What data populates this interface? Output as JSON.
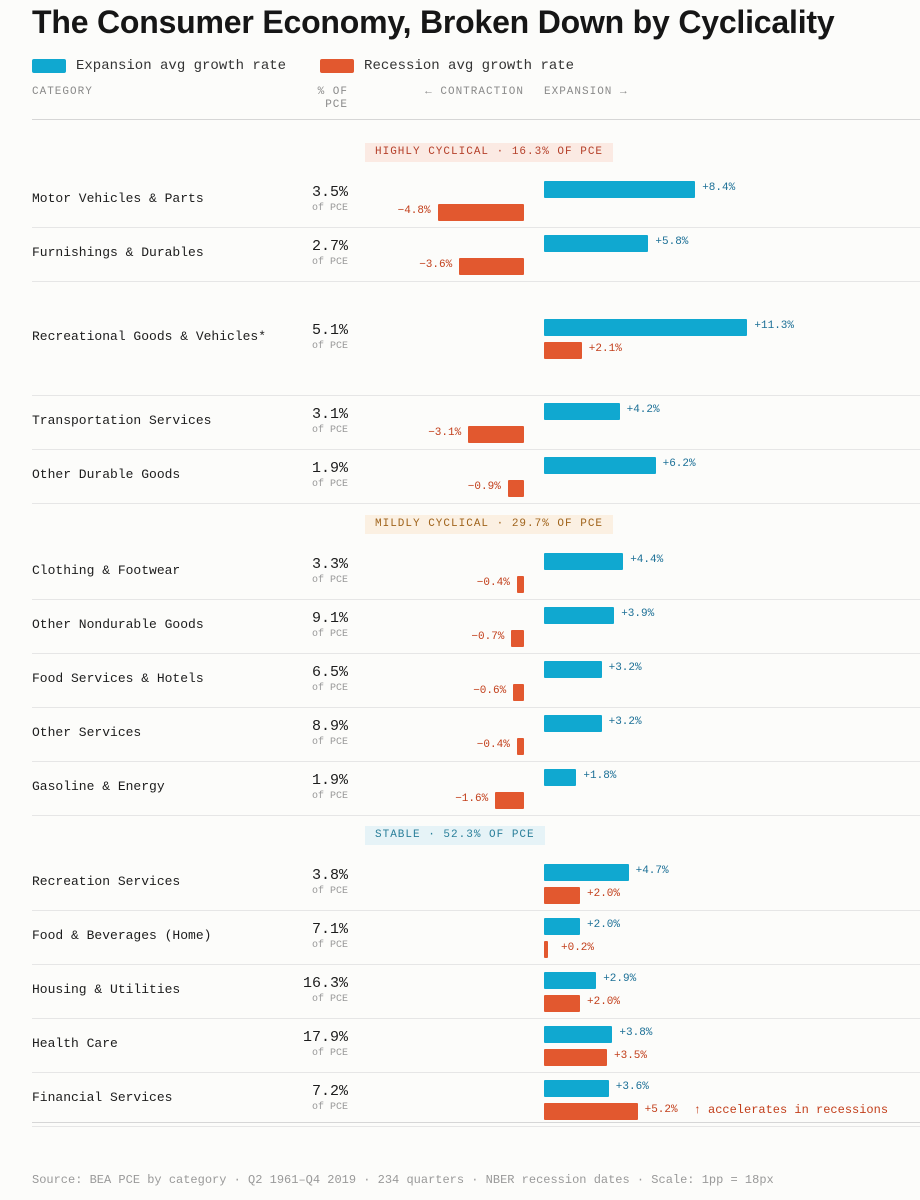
{
  "chart_data": {
    "type": "bar",
    "title": "The Consumer Economy, Broken Down by Cyclicality",
    "legend": [
      {
        "name": "Expansion avg growth rate",
        "color": "#10a8d0"
      },
      {
        "name": "Recession avg growth rate",
        "color": "#e2582f"
      }
    ],
    "headers": {
      "category": "CATEGORY",
      "pce_line1": "% OF",
      "pce_line2": "PCE",
      "contraction": "← CONTRACTION",
      "expansion": "EXPANSION →"
    },
    "unit_label": "of PCE",
    "groups": [
      {
        "label": "HIGHLY CYCLICAL  ·  16.3% OF PCE",
        "bg": "#fbeae3",
        "fg": "#b5402a",
        "rows": [
          {
            "category": "Motor Vehicles & Parts",
            "pce": "3.5%",
            "expansion": 8.4,
            "expansion_label": "+8.4%",
            "recession": -4.8,
            "recession_label": "−4.8%"
          },
          {
            "category": "Furnishings & Durables",
            "pce": "2.7%",
            "expansion": 5.8,
            "expansion_label": "+5.8%",
            "recession": -3.6,
            "recession_label": "−3.6%"
          },
          {
            "category": "Recreational Goods & Vehicles*",
            "pce": "5.1%",
            "expansion": 11.3,
            "expansion_label": "+11.3%",
            "recession": 2.1,
            "recession_label": "+2.1%",
            "tall": true
          },
          {
            "category": "Transportation Services",
            "pce": "3.1%",
            "expansion": 4.2,
            "expansion_label": "+4.2%",
            "recession": -3.1,
            "recession_label": "−3.1%"
          },
          {
            "category": "Other Durable Goods",
            "pce": "1.9%",
            "expansion": 6.2,
            "expansion_label": "+6.2%",
            "recession": -0.9,
            "recession_label": "−0.9%"
          }
        ]
      },
      {
        "label": "MILDLY CYCLICAL  ·  29.7% OF PCE",
        "bg": "#fbf0e2",
        "fg": "#a0641c",
        "rows": [
          {
            "category": "Clothing & Footwear",
            "pce": "3.3%",
            "expansion": 4.4,
            "expansion_label": "+4.4%",
            "recession": -0.4,
            "recession_label": "−0.4%"
          },
          {
            "category": "Other Nondurable Goods",
            "pce": "9.1%",
            "expansion": 3.9,
            "expansion_label": "+3.9%",
            "recession": -0.7,
            "recession_label": "−0.7%"
          },
          {
            "category": "Food Services & Hotels",
            "pce": "6.5%",
            "expansion": 3.2,
            "expansion_label": "+3.2%",
            "recession": -0.6,
            "recession_label": "−0.6%"
          },
          {
            "category": "Other Services",
            "pce": "8.9%",
            "expansion": 3.2,
            "expansion_label": "+3.2%",
            "recession": -0.4,
            "recession_label": "−0.4%"
          },
          {
            "category": "Gasoline & Energy",
            "pce": "1.9%",
            "expansion": 1.8,
            "expansion_label": "+1.8%",
            "recession": -1.6,
            "recession_label": "−1.6%"
          }
        ]
      },
      {
        "label": "STABLE  ·  52.3% OF PCE",
        "bg": "#e6f3f7",
        "fg": "#2a7f9a",
        "rows": [
          {
            "category": "Recreation Services",
            "pce": "3.8%",
            "expansion": 4.7,
            "expansion_label": "+4.7%",
            "recession": 2.0,
            "recession_label": "+2.0%"
          },
          {
            "category": "Food & Beverages (Home)",
            "pce": "7.1%",
            "expansion": 2.0,
            "expansion_label": "+2.0%",
            "recession": 0.2,
            "recession_label": "+0.2%"
          },
          {
            "category": "Housing & Utilities",
            "pce": "16.3%",
            "expansion": 2.9,
            "expansion_label": "+2.9%",
            "recession": 2.0,
            "recession_label": "+2.0%"
          },
          {
            "category": "Health Care",
            "pce": "17.9%",
            "expansion": 3.8,
            "expansion_label": "+3.8%",
            "recession": 3.5,
            "recession_label": "+3.5%"
          },
          {
            "category": "Financial Services",
            "pce": "7.2%",
            "expansion": 3.6,
            "expansion_label": "+3.6%",
            "recession": 5.2,
            "recession_label": "+5.2%",
            "note": "↑ accelerates in recessions"
          }
        ]
      }
    ],
    "source": "Source: BEA PCE by category · Q2 1961–Q4 2019 · 234 quarters · NBER recession dates · Scale: 1pp = 18px"
  }
}
